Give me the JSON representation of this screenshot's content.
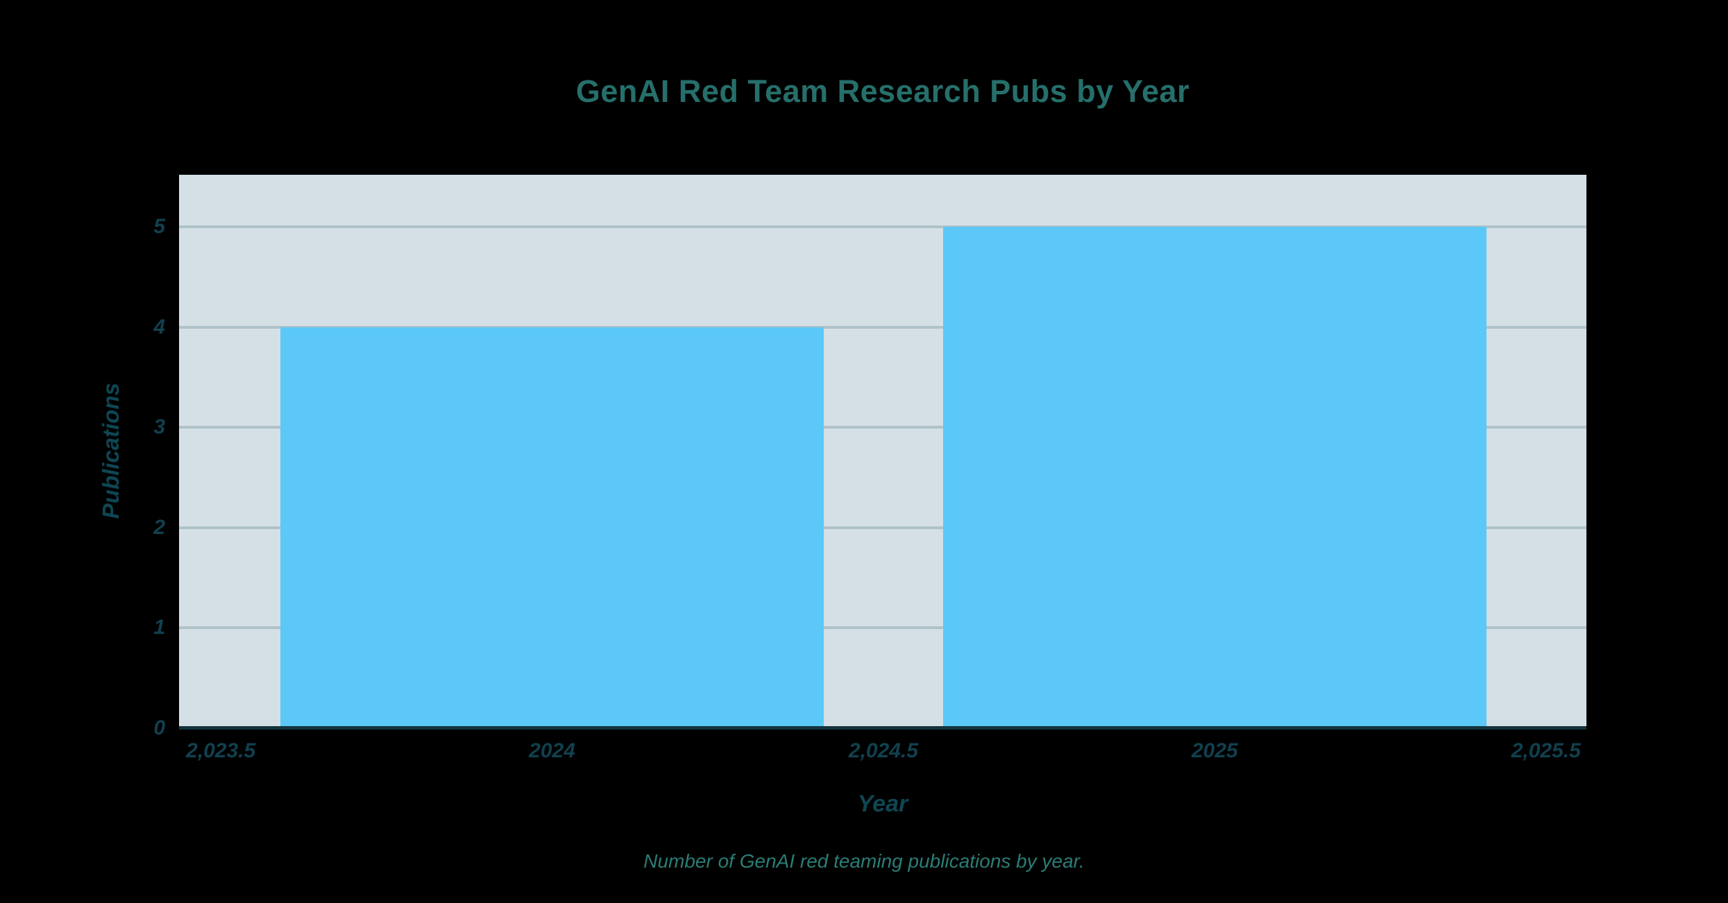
{
  "chart_data": {
    "type": "bar",
    "title": "GenAI Red Team Research Pubs by Year",
    "xlabel": "Year",
    "ylabel": "Publications",
    "caption": "Number of GenAI red teaming publications by year.",
    "categories": [
      2024,
      2025
    ],
    "series": [
      {
        "name": "Publications",
        "values": [
          4,
          5
        ]
      }
    ],
    "bar_width_units": 0.82,
    "xlim": [
      2023.437,
      2025.561
    ],
    "ylim": [
      0,
      5.52
    ],
    "x_ticks": [
      {
        "value": 2023.5,
        "label": "2,023.5"
      },
      {
        "value": 2024,
        "label": "2024"
      },
      {
        "value": 2024.5,
        "label": "2,024.5"
      },
      {
        "value": 2025,
        "label": "2025"
      },
      {
        "value": 2025.5,
        "label": "2,025.5"
      }
    ],
    "y_ticks": [
      {
        "value": 0,
        "label": "0"
      },
      {
        "value": 1,
        "label": "1"
      },
      {
        "value": 2,
        "label": "2"
      },
      {
        "value": 3,
        "label": "3"
      },
      {
        "value": 4,
        "label": "4"
      },
      {
        "value": 5,
        "label": "5"
      }
    ],
    "grid": "horizontal",
    "legend": "none",
    "colors": {
      "page_background": "#000000",
      "plot_background": "#D5E0E6",
      "bar": "#5BC8F7",
      "gridline": "#AFC2C9",
      "axis_line": "#14323E",
      "title": "#266F6B",
      "axis_label": "#0F4653",
      "tick_label": "#11404E",
      "caption": "#2B7D76"
    }
  }
}
